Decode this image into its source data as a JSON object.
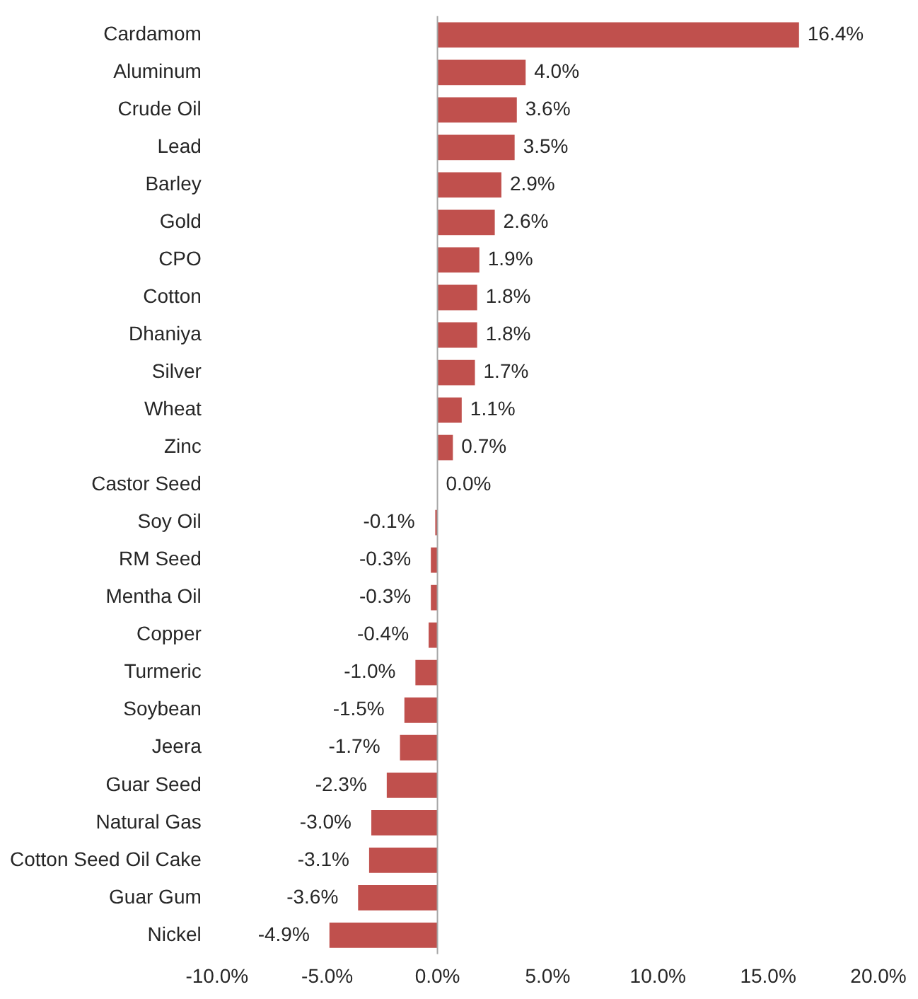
{
  "chart_data": {
    "type": "bar",
    "orientation": "horizontal",
    "categories": [
      "Cardamom",
      "Aluminum",
      "Crude Oil",
      "Lead",
      "Barley",
      "Gold",
      "CPO",
      "Cotton",
      "Dhaniya",
      "Silver",
      "Wheat",
      "Zinc",
      "Castor Seed",
      "Soy Oil",
      "RM Seed",
      "Mentha Oil",
      "Copper",
      "Turmeric",
      "Soybean",
      "Jeera",
      "Guar Seed",
      "Natural Gas",
      "Cotton Seed Oil Cake",
      "Guar Gum",
      "Nickel"
    ],
    "values": [
      16.4,
      4.0,
      3.6,
      3.5,
      2.9,
      2.6,
      1.9,
      1.8,
      1.8,
      1.7,
      1.1,
      0.7,
      0.0,
      -0.1,
      -0.3,
      -0.3,
      -0.4,
      -1.0,
      -1.5,
      -1.7,
      -2.3,
      -3.0,
      -3.1,
      -3.6,
      -4.9
    ],
    "value_labels": [
      "16.4%",
      "4.0%",
      "3.6%",
      "3.5%",
      "2.9%",
      "2.6%",
      "1.9%",
      "1.8%",
      "1.8%",
      "1.7%",
      "1.1%",
      "0.7%",
      "0.0%",
      "-0.1%",
      "-0.3%",
      "-0.3%",
      "-0.4%",
      "-1.0%",
      "-1.5%",
      "-1.7%",
      "-2.3%",
      "-3.0%",
      "-3.1%",
      "-3.6%",
      "-4.9%"
    ],
    "color": "#c0504d",
    "xlim": [
      -10,
      20
    ],
    "xticks": [
      {
        "value": -10,
        "label": "-10.0%"
      },
      {
        "value": -5,
        "label": "-5.0%"
      },
      {
        "value": 0,
        "label": "0.0%"
      },
      {
        "value": 5,
        "label": "5.0%"
      },
      {
        "value": 10,
        "label": "10.0%"
      },
      {
        "value": 15,
        "label": "15.0%"
      },
      {
        "value": 20,
        "label": "20.0%"
      }
    ],
    "ref_lines": [
      {
        "axis": "x",
        "value": 0,
        "color": "#a6a6a6"
      }
    ],
    "grid": false,
    "legend": false
  }
}
